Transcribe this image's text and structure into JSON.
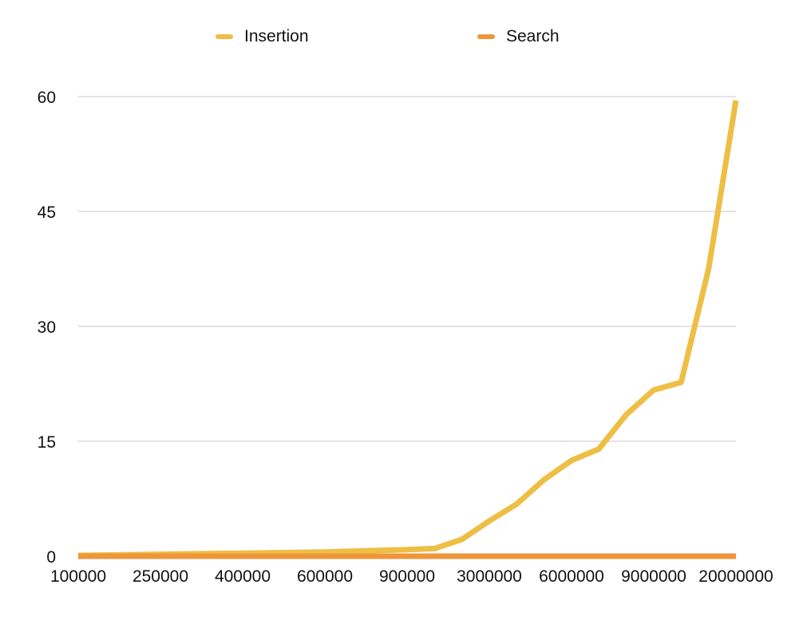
{
  "chart_data": {
    "type": "line",
    "title": "",
    "xlabel": "",
    "ylabel": "",
    "legend_position": "top",
    "grid": true,
    "ylim": [
      0,
      60
    ],
    "y_ticks": [
      "0",
      "15",
      "30",
      "45",
      "60"
    ],
    "x": [
      "100000",
      "",
      "",
      "250000",
      "",
      "",
      "400000",
      "",
      "",
      "600000",
      "",
      "",
      "900000",
      "",
      "",
      "3000000",
      "",
      "",
      "6000000",
      "",
      "",
      "9000000",
      "",
      "",
      "20000000"
    ],
    "x_tick_labels": [
      "100000",
      "250000",
      "400000",
      "600000",
      "900000",
      "3000000",
      "6000000",
      "9000000",
      "20000000"
    ],
    "series": [
      {
        "name": "Insertion",
        "color": "#EEBE45",
        "values": [
          0.1,
          0.15,
          0.2,
          0.25,
          0.3,
          0.35,
          0.4,
          0.45,
          0.5,
          0.55,
          0.65,
          0.75,
          0.85,
          1.0,
          2.2,
          4.6,
          6.8,
          10.0,
          12.5,
          14.0,
          18.5,
          21.7,
          22.7,
          37.5,
          59.5
        ]
      },
      {
        "name": "Search",
        "color": "#EE963A",
        "values": [
          0,
          0,
          0,
          0,
          0,
          0,
          0,
          0,
          0,
          0,
          0,
          0,
          0,
          0,
          0,
          0,
          0,
          0,
          0,
          0,
          0,
          0,
          0,
          0,
          0
        ]
      }
    ]
  }
}
